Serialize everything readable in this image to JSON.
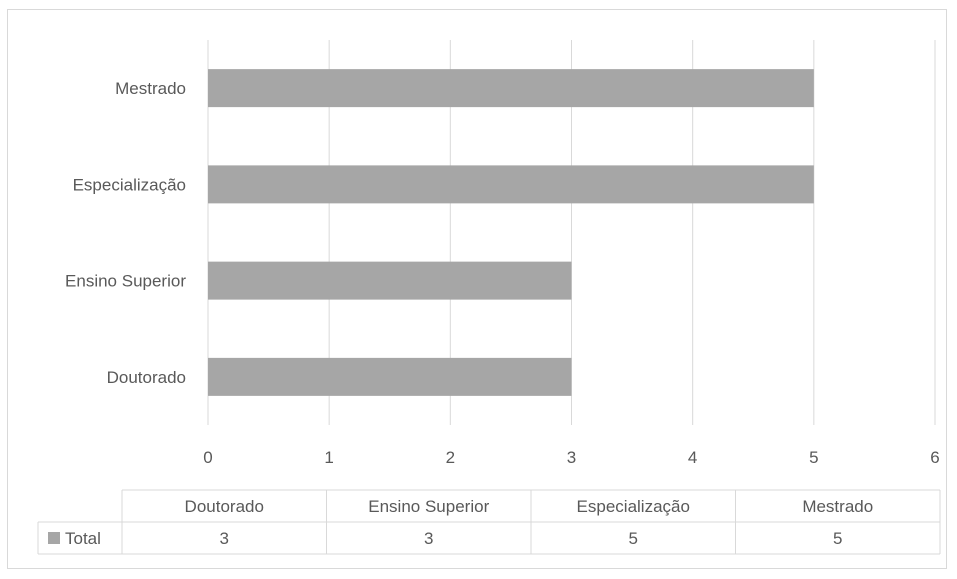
{
  "chart_data": {
    "type": "bar",
    "orientation": "horizontal",
    "categories": [
      "Doutorado",
      "Ensino Superior",
      "Especialização",
      "Mestrado"
    ],
    "series": [
      {
        "name": "Total",
        "values": [
          3,
          3,
          5,
          5
        ]
      }
    ],
    "xlim": [
      0,
      6
    ],
    "x_ticks": [
      "0",
      "1",
      "2",
      "3",
      "4",
      "5",
      "6"
    ],
    "grid": "vertical",
    "data_table": true,
    "colors": {
      "bar": "#a6a6a6",
      "grid": "#d9d9d9",
      "text": "#595959"
    }
  }
}
